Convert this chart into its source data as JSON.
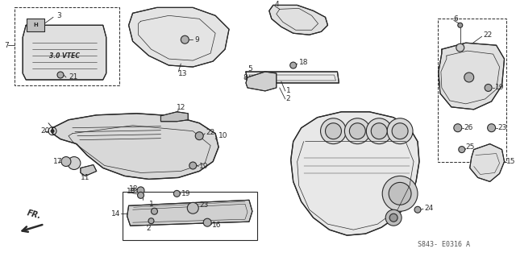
{
  "bg_color": "#ffffff",
  "line_color": "#2a2a2a",
  "watermark": "S843- E0316 A",
  "fig_w": 6.4,
  "fig_h": 3.19,
  "dpi": 100
}
